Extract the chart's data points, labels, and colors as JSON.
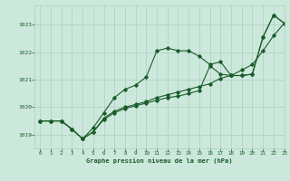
{
  "background_color": "#cce8dc",
  "grid_color": "#aacfbf",
  "line_color": "#1a5c2a",
  "xlabel": "Graphe pression niveau de la mer (hPa)",
  "xlim": [
    -0.5,
    23
  ],
  "ylim": [
    1018.5,
    1023.7
  ],
  "yticks": [
    1019,
    1020,
    1021,
    1022,
    1023
  ],
  "xticks": [
    0,
    1,
    2,
    3,
    4,
    5,
    6,
    7,
    8,
    9,
    10,
    11,
    12,
    13,
    14,
    15,
    16,
    17,
    18,
    19,
    20,
    21,
    22,
    23
  ],
  "series": [
    [
      1019.5,
      1019.5,
      1019.5,
      1019.2,
      1018.85,
      1019.25,
      1019.8,
      1020.35,
      1020.65,
      1020.8,
      1021.1,
      1022.05,
      1022.15,
      1022.05,
      1022.05,
      1021.85,
      1021.55,
      1021.65,
      1021.15,
      1021.15,
      1021.2,
      1022.55,
      1023.35,
      1023.05
    ],
    [
      1019.5,
      1019.5,
      1019.5,
      1019.2,
      1018.85,
      1019.1,
      1019.6,
      1019.85,
      1020.0,
      1020.1,
      1020.2,
      1020.35,
      1020.45,
      1020.55,
      1020.65,
      1020.75,
      1020.85,
      1021.05,
      1021.15,
      1021.35,
      1021.55,
      1022.05,
      1022.6,
      1023.05
    ],
    [
      1019.5,
      1019.5,
      1019.5,
      1019.2,
      1018.85,
      1019.1,
      1019.55,
      1019.8,
      1019.95,
      1020.05,
      1020.15,
      1020.25,
      1020.35,
      1020.4,
      1020.5,
      1020.6,
      1021.5,
      1021.2,
      1021.15,
      1021.15,
      1021.2,
      1022.55,
      1023.35,
      1023.05
    ]
  ]
}
